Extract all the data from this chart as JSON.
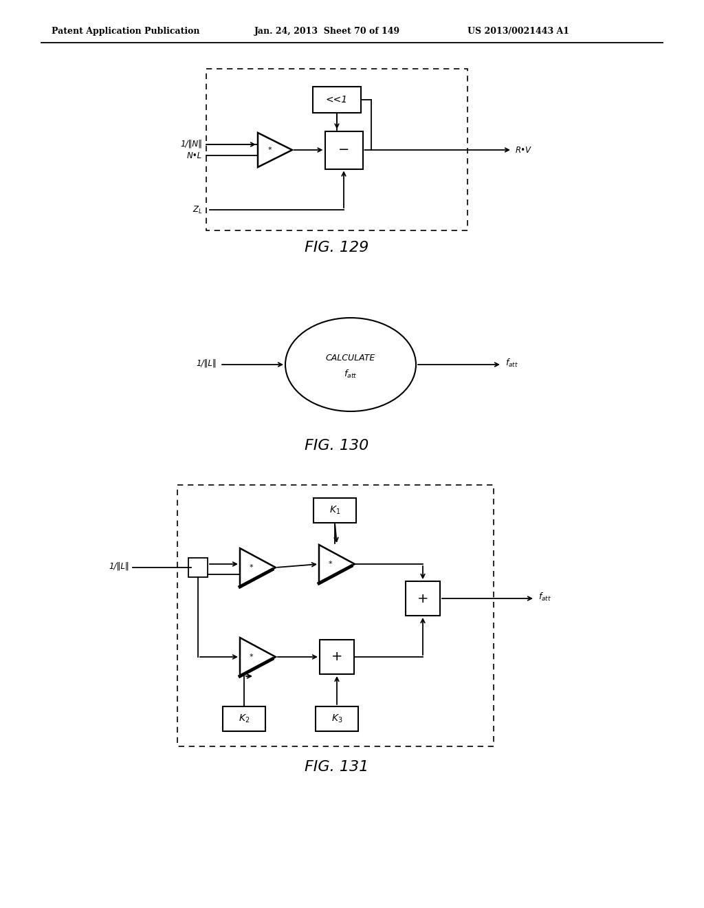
{
  "bg_color": "#ffffff",
  "line_color": "#000000",
  "header_left": "Patent Application Publication",
  "header_mid": "Jan. 24, 2013  Sheet 70 of 149",
  "header_right": "US 2013/0021443 A1",
  "fig129_caption": "FIG. 129",
  "fig130_caption": "FIG. 130",
  "fig131_caption": "FIG. 131"
}
